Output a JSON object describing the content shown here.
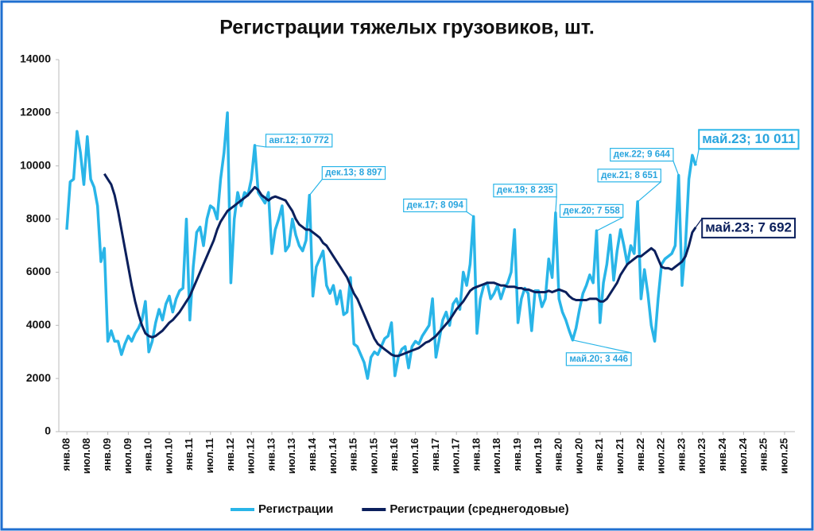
{
  "chart_data": {
    "type": "line",
    "title": "Регистрации тяжелых грузовиков, шт.",
    "categories": [
      "янв.08",
      null,
      null,
      null,
      null,
      null,
      "июл.08",
      null,
      null,
      null,
      null,
      null,
      "янв.09",
      null,
      null,
      null,
      null,
      null,
      "июл.09",
      null,
      null,
      null,
      null,
      null,
      "янв.10",
      null,
      null,
      null,
      null,
      null,
      "июл.10",
      null,
      null,
      null,
      null,
      null,
      "янв.11",
      null,
      null,
      null,
      null,
      null,
      "июл.11",
      null,
      null,
      null,
      null,
      null,
      "янв.12",
      null,
      null,
      null,
      null,
      null,
      "июл.12",
      null,
      null,
      null,
      null,
      null,
      "янв.13",
      null,
      null,
      null,
      null,
      null,
      "июл.13",
      null,
      null,
      null,
      null,
      null,
      "янв.14",
      null,
      null,
      null,
      null,
      null,
      "июл.14",
      null,
      null,
      null,
      null,
      null,
      "янв.15",
      null,
      null,
      null,
      null,
      null,
      "июл.15",
      null,
      null,
      null,
      null,
      null,
      "янв.16",
      null,
      null,
      null,
      null,
      null,
      "июл.16",
      null,
      null,
      null,
      null,
      null,
      "янв.17",
      null,
      null,
      null,
      null,
      null,
      "июл.17",
      null,
      null,
      null,
      null,
      null,
      "янв.18",
      null,
      null,
      null,
      null,
      null,
      "июл.18",
      null,
      null,
      null,
      null,
      null,
      "янв.19",
      null,
      null,
      null,
      null,
      null,
      "июл.19",
      null,
      null,
      null,
      null,
      null,
      "янв.20",
      null,
      null,
      null,
      null,
      null,
      "июл.20",
      null,
      null,
      null,
      null,
      null,
      "янв.21",
      null,
      null,
      null,
      null,
      null,
      "июл.21",
      null,
      null,
      null,
      null,
      null,
      "янв.22",
      null,
      null,
      null,
      null,
      null,
      "июл.22",
      null,
      null,
      null,
      null,
      null,
      "янв.23",
      null,
      null,
      null,
      null,
      null,
      "июл.23",
      null,
      null,
      null,
      null,
      null,
      "янв.24",
      null,
      null,
      null,
      null,
      null,
      "июл.24",
      null,
      null,
      null,
      null,
      null,
      "янв.25",
      null,
      null,
      null,
      null,
      null,
      "июл.25"
    ],
    "series": [
      {
        "name": "Регистрации",
        "color": "#29b5e8",
        "values": [
          7600,
          9400,
          9500,
          11300,
          10500,
          9300,
          11100,
          9500,
          9200,
          8500,
          6400,
          6900,
          3400,
          3800,
          3400,
          3400,
          2900,
          3300,
          3600,
          3400,
          3700,
          3900,
          4200,
          4900,
          3000,
          3400,
          4100,
          4600,
          4200,
          4800,
          5100,
          4500,
          5000,
          5300,
          5400,
          8000,
          4200,
          6200,
          7500,
          7700,
          7000,
          8000,
          8500,
          8400,
          8000,
          9500,
          10500,
          12000,
          5600,
          8000,
          9000,
          8500,
          9000,
          8900,
          9500,
          10772,
          9000,
          8800,
          8600,
          9000,
          6700,
          7600,
          8000,
          8500,
          6800,
          7000,
          8000,
          7400,
          7000,
          6800,
          7200,
          8897,
          5100,
          6200,
          6500,
          6800,
          5500,
          5200,
          5500,
          4800,
          5300,
          4400,
          4500,
          5800,
          3300,
          3200,
          2900,
          2600,
          2000,
          2800,
          3000,
          2900,
          3200,
          3500,
          3600,
          4100,
          2100,
          2800,
          3100,
          3200,
          2400,
          3200,
          3400,
          3300,
          3600,
          3800,
          4000,
          5000,
          2800,
          3500,
          4200,
          4500,
          4000,
          4800,
          5000,
          4600,
          6000,
          5500,
          6300,
          8094,
          3700,
          5000,
          5500,
          5600,
          5000,
          5200,
          5500,
          5000,
          5400,
          5600,
          6000,
          7600,
          4100,
          5000,
          5400,
          5200,
          3800,
          5300,
          5300,
          4700,
          5000,
          6500,
          5800,
          8235,
          5000,
          4500,
          4200,
          3800,
          3446,
          3900,
          4600,
          5200,
          5500,
          5900,
          5600,
          7558,
          4100,
          5600,
          6300,
          7400,
          5700,
          6800,
          7600,
          7000,
          6300,
          7000,
          6700,
          8651,
          5000,
          6100,
          5200,
          4000,
          3400,
          5000,
          6300,
          6500,
          6600,
          6700,
          7000,
          9644,
          5500,
          7000,
          9500,
          10400,
          10011,
          null,
          null,
          null,
          null,
          null,
          null,
          null,
          null,
          null,
          null,
          null,
          null,
          null,
          null,
          null,
          null,
          null,
          null,
          null,
          null,
          null,
          null,
          null,
          null,
          null,
          null
        ],
        "value_labels": [
          null,
          null,
          null,
          null,
          null,
          null,
          null,
          null,
          null,
          null,
          null,
          null,
          null,
          null,
          null,
          null,
          null,
          null,
          null,
          null,
          null,
          null,
          null,
          null,
          null,
          null,
          null,
          null,
          null,
          null,
          null,
          null,
          null,
          null,
          null,
          null,
          null,
          null,
          null,
          null,
          null,
          null,
          null,
          null,
          null,
          null,
          null,
          null,
          null,
          null,
          null,
          null,
          null,
          null,
          null,
          "авг.12; 10 772",
          null,
          null,
          null,
          null,
          null,
          null,
          null,
          null,
          null,
          null,
          null,
          null,
          null,
          null,
          null,
          "дек.13; 8 897",
          null,
          null,
          null,
          null,
          null,
          null,
          null,
          null,
          null,
          null,
          null,
          null,
          null,
          null,
          null,
          null,
          null,
          null,
          null,
          null,
          null,
          null,
          null,
          null,
          null,
          null,
          null,
          null,
          null,
          null,
          null,
          null,
          null,
          null,
          null,
          null,
          null,
          null,
          null,
          null,
          null,
          null,
          null,
          null,
          null,
          null,
          null,
          "дек.17; 8 094",
          null,
          null,
          null,
          null,
          null,
          null,
          null,
          null,
          null,
          null,
          null,
          null,
          null,
          null,
          null,
          null,
          null,
          null,
          null,
          null,
          null,
          null,
          null,
          "дек.19; 8 235",
          null,
          null,
          null,
          null,
          "май.20; 3 446",
          null,
          null,
          null,
          null,
          null,
          null,
          "дек.20; 7 558",
          null,
          null,
          null,
          null,
          null,
          null,
          null,
          null,
          null,
          null,
          null,
          "дек.21; 8 651",
          null,
          null,
          null,
          null,
          null,
          null,
          null,
          null,
          null,
          null,
          null,
          "дек.22; 9 644",
          null,
          null,
          null,
          null,
          "май.23; 10 011",
          null,
          null,
          null,
          null,
          null,
          null,
          null,
          null,
          null,
          null,
          null,
          null,
          null,
          null,
          null,
          null,
          null,
          null,
          null,
          null,
          null,
          null,
          null,
          null,
          null,
          null
        ]
      },
      {
        "name": "Регистрации (среднегодовые)",
        "color": "#0b1f5c",
        "values": [
          null,
          null,
          null,
          null,
          null,
          null,
          null,
          null,
          null,
          null,
          null,
          9700,
          9500,
          9300,
          8900,
          8300,
          7600,
          6900,
          6200,
          5500,
          4900,
          4400,
          4000,
          3700,
          3600,
          3550,
          3600,
          3700,
          3800,
          3950,
          4100,
          4200,
          4350,
          4500,
          4700,
          4900,
          5100,
          5400,
          5700,
          6000,
          6300,
          6600,
          6900,
          7200,
          7600,
          7900,
          8100,
          8300,
          8400,
          8500,
          8600,
          8700,
          8800,
          8900,
          9050,
          9200,
          9100,
          8900,
          8800,
          8700,
          8800,
          8850,
          8800,
          8750,
          8700,
          8500,
          8300,
          8000,
          7800,
          7700,
          7600,
          7600,
          7500,
          7400,
          7300,
          7100,
          7000,
          6800,
          6600,
          6400,
          6200,
          6000,
          5800,
          5500,
          5200,
          5000,
          4700,
          4400,
          4100,
          3800,
          3500,
          3300,
          3200,
          3100,
          3000,
          2900,
          2850,
          2850,
          2900,
          2950,
          3000,
          3050,
          3100,
          3150,
          3250,
          3350,
          3400,
          3500,
          3600,
          3750,
          3900,
          4050,
          4200,
          4400,
          4600,
          4750,
          4900,
          5100,
          5300,
          5400,
          5450,
          5500,
          5550,
          5600,
          5600,
          5600,
          5550,
          5500,
          5500,
          5450,
          5450,
          5450,
          5400,
          5400,
          5350,
          5350,
          5300,
          5250,
          5250,
          5250,
          5250,
          5300,
          5250,
          5300,
          5350,
          5300,
          5250,
          5100,
          5000,
          4950,
          4950,
          4950,
          4950,
          5000,
          5000,
          5000,
          4900,
          4900,
          5000,
          5200,
          5400,
          5600,
          5900,
          6100,
          6300,
          6400,
          6500,
          6600,
          6600,
          6700,
          6800,
          6900,
          6800,
          6500,
          6200,
          6150,
          6150,
          6100,
          6200,
          6300,
          6400,
          6600,
          7000,
          7500,
          7692,
          null,
          null,
          null,
          null,
          null,
          null,
          null,
          null,
          null,
          null,
          null,
          null,
          null,
          null,
          null,
          null,
          null,
          null,
          null,
          null,
          null,
          null,
          null,
          null,
          null,
          null
        ],
        "value_labels": [
          null,
          null,
          null,
          null,
          null,
          null,
          null,
          null,
          null,
          null,
          null,
          null,
          null,
          null,
          null,
          null,
          null,
          null,
          null,
          null,
          null,
          null,
          null,
          null,
          null,
          null,
          null,
          null,
          null,
          null,
          null,
          null,
          null,
          null,
          null,
          null,
          null,
          null,
          null,
          null,
          null,
          null,
          null,
          null,
          null,
          null,
          null,
          null,
          null,
          null,
          null,
          null,
          null,
          null,
          null,
          null,
          null,
          null,
          null,
          null,
          null,
          null,
          null,
          null,
          null,
          null,
          null,
          null,
          null,
          null,
          null,
          null,
          null,
          null,
          null,
          null,
          null,
          null,
          null,
          null,
          null,
          null,
          null,
          null,
          null,
          null,
          null,
          null,
          null,
          null,
          null,
          null,
          null,
          null,
          null,
          null,
          null,
          null,
          null,
          null,
          null,
          null,
          null,
          null,
          null,
          null,
          null,
          null,
          null,
          null,
          null,
          null,
          null,
          null,
          null,
          null,
          null,
          null,
          null,
          null,
          null,
          null,
          null,
          null,
          null,
          null,
          null,
          null,
          null,
          null,
          null,
          null,
          null,
          null,
          null,
          null,
          null,
          null,
          null,
          null,
          null,
          null,
          null,
          null,
          null,
          null,
          null,
          null,
          null,
          null,
          null,
          null,
          null,
          null,
          null,
          null,
          null,
          null,
          null,
          null,
          null,
          null,
          null,
          null,
          null,
          null,
          null,
          null,
          null,
          null,
          null,
          null,
          null,
          null,
          null,
          null,
          null,
          null,
          null,
          null,
          null,
          null,
          null,
          null,
          "май.23; 7 692",
          null,
          null,
          null,
          null,
          null,
          null,
          null,
          null,
          null,
          null,
          null,
          null,
          null,
          null,
          null,
          null,
          null,
          null,
          null,
          null,
          null,
          null,
          null,
          null,
          null,
          null
        ]
      }
    ],
    "ylim": [
      0,
      14000
    ],
    "yticks": [
      0,
      2000,
      4000,
      6000,
      8000,
      10000,
      12000,
      14000
    ],
    "grid": false,
    "legend": "bottom"
  }
}
